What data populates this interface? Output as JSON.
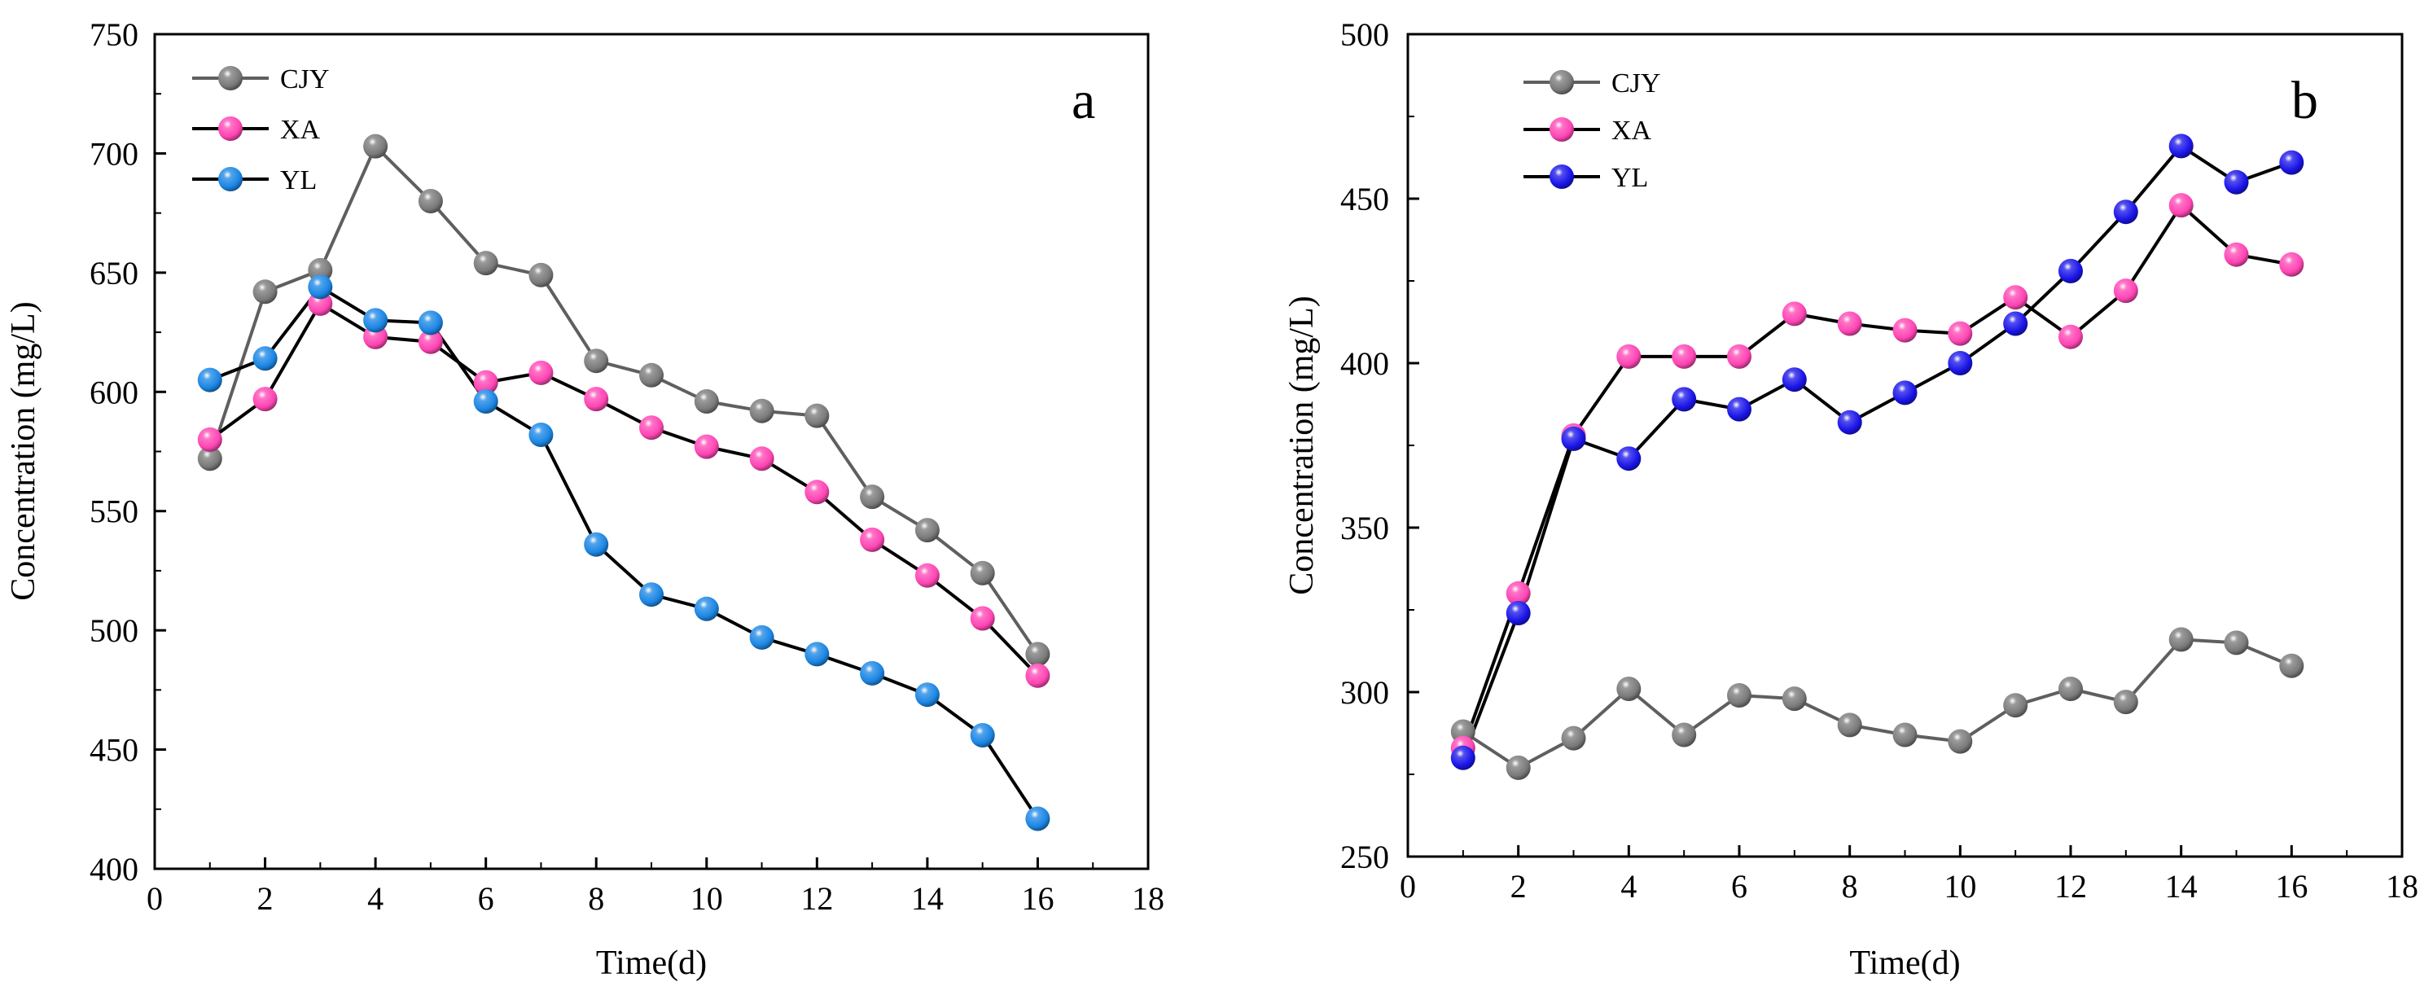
{
  "figure": {
    "x_tick_labels": [
      "0",
      "2",
      "4",
      "6",
      "8",
      "10",
      "12",
      "14",
      "16",
      "18"
    ]
  },
  "colors": {
    "CJY": "#7a7a7a",
    "XA": "#ff45b4",
    "YL_a": "#1b86e4",
    "YL_b": "#1a14e8",
    "line_dark": "#000000",
    "line_gray": "#5f5f5f"
  },
  "chart_data": [
    {
      "type": "line",
      "panel_label": "a",
      "xlabel": "Time(d)",
      "ylabel": "Concentration (mg/L)",
      "xlim": [
        0,
        18
      ],
      "ylim": [
        400,
        750
      ],
      "x_ticks": [
        0,
        2,
        4,
        6,
        8,
        10,
        12,
        14,
        16,
        18
      ],
      "y_ticks": [
        400,
        450,
        500,
        550,
        600,
        650,
        700,
        750
      ],
      "grid": false,
      "legend_position": "top-left",
      "x": [
        1,
        2,
        3,
        4,
        5,
        6,
        7,
        8,
        9,
        10,
        11,
        12,
        13,
        14,
        15,
        16
      ],
      "series": [
        {
          "name": "CJY",
          "color_key": "CJY",
          "line_key": "line_gray",
          "values": [
            572,
            642,
            651,
            703,
            680,
            654,
            649,
            613,
            607,
            596,
            592,
            590,
            556,
            542,
            524,
            490
          ]
        },
        {
          "name": "XA",
          "color_key": "XA",
          "line_key": "line_dark",
          "values": [
            580,
            597,
            637,
            623,
            621,
            604,
            608,
            597,
            585,
            577,
            572,
            558,
            538,
            523,
            505,
            481
          ]
        },
        {
          "name": "YL",
          "color_key": "YL_a",
          "line_key": "line_dark",
          "values": [
            605,
            614,
            644,
            630,
            629,
            596,
            582,
            536,
            515,
            509,
            497,
            490,
            482,
            473,
            456,
            421
          ]
        }
      ]
    },
    {
      "type": "line",
      "panel_label": "b",
      "xlabel": "Time(d)",
      "ylabel": "Concentration (mg/L)",
      "xlim": [
        0,
        18
      ],
      "ylim": [
        250,
        500
      ],
      "x_ticks": [
        0,
        2,
        4,
        6,
        8,
        10,
        12,
        14,
        16,
        18
      ],
      "y_ticks": [
        250,
        300,
        350,
        400,
        450,
        500
      ],
      "grid": false,
      "legend_position": "top-left",
      "x": [
        1,
        2,
        3,
        4,
        5,
        6,
        7,
        8,
        9,
        10,
        11,
        12,
        13,
        14,
        15,
        16
      ],
      "series": [
        {
          "name": "CJY",
          "color_key": "CJY",
          "line_key": "line_gray",
          "values": [
            288,
            277,
            286,
            301,
            287,
            299,
            298,
            290,
            287,
            285,
            296,
            301,
            297,
            316,
            315,
            308
          ]
        },
        {
          "name": "XA",
          "color_key": "XA",
          "line_key": "line_dark",
          "values": [
            283,
            330,
            378,
            402,
            402,
            402,
            415,
            412,
            410,
            409,
            420,
            408,
            422,
            448,
            433,
            430
          ]
        },
        {
          "name": "YL",
          "color_key": "YL_b",
          "line_key": "line_dark",
          "values": [
            280,
            324,
            377,
            371,
            389,
            386,
            395,
            382,
            391,
            400,
            412,
            428,
            446,
            466,
            455,
            461
          ]
        }
      ]
    }
  ]
}
